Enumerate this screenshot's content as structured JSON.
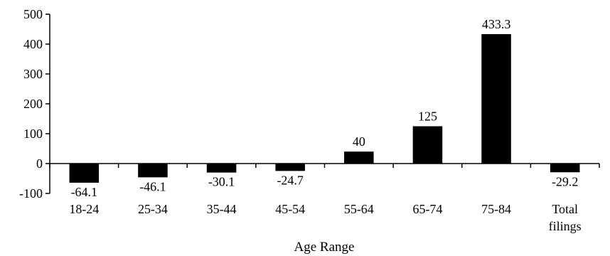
{
  "chart_data": {
    "type": "bar",
    "title": "",
    "xlabel": "Age Range",
    "ylabel": "",
    "categories": [
      "18-24",
      "25-34",
      "35-44",
      "45-54",
      "55-64",
      "65-74",
      "75-84",
      "Total filings"
    ],
    "values": [
      -64.1,
      -46.1,
      -30.1,
      -24.7,
      40,
      125,
      433.3,
      -29.2
    ],
    "data_labels": [
      "-64.1",
      "-46.1",
      "-30.1",
      "-24.7",
      "40",
      "125",
      "433.3",
      "-29.2"
    ],
    "y_ticks": [
      -100,
      0,
      100,
      200,
      300,
      400,
      500
    ],
    "y_tick_labels": [
      "-100",
      "0",
      "100",
      "200",
      "300",
      "400",
      "500"
    ],
    "ylim": [
      -100,
      500
    ],
    "grid": false,
    "legend": "none",
    "bar_color": "#000000"
  }
}
